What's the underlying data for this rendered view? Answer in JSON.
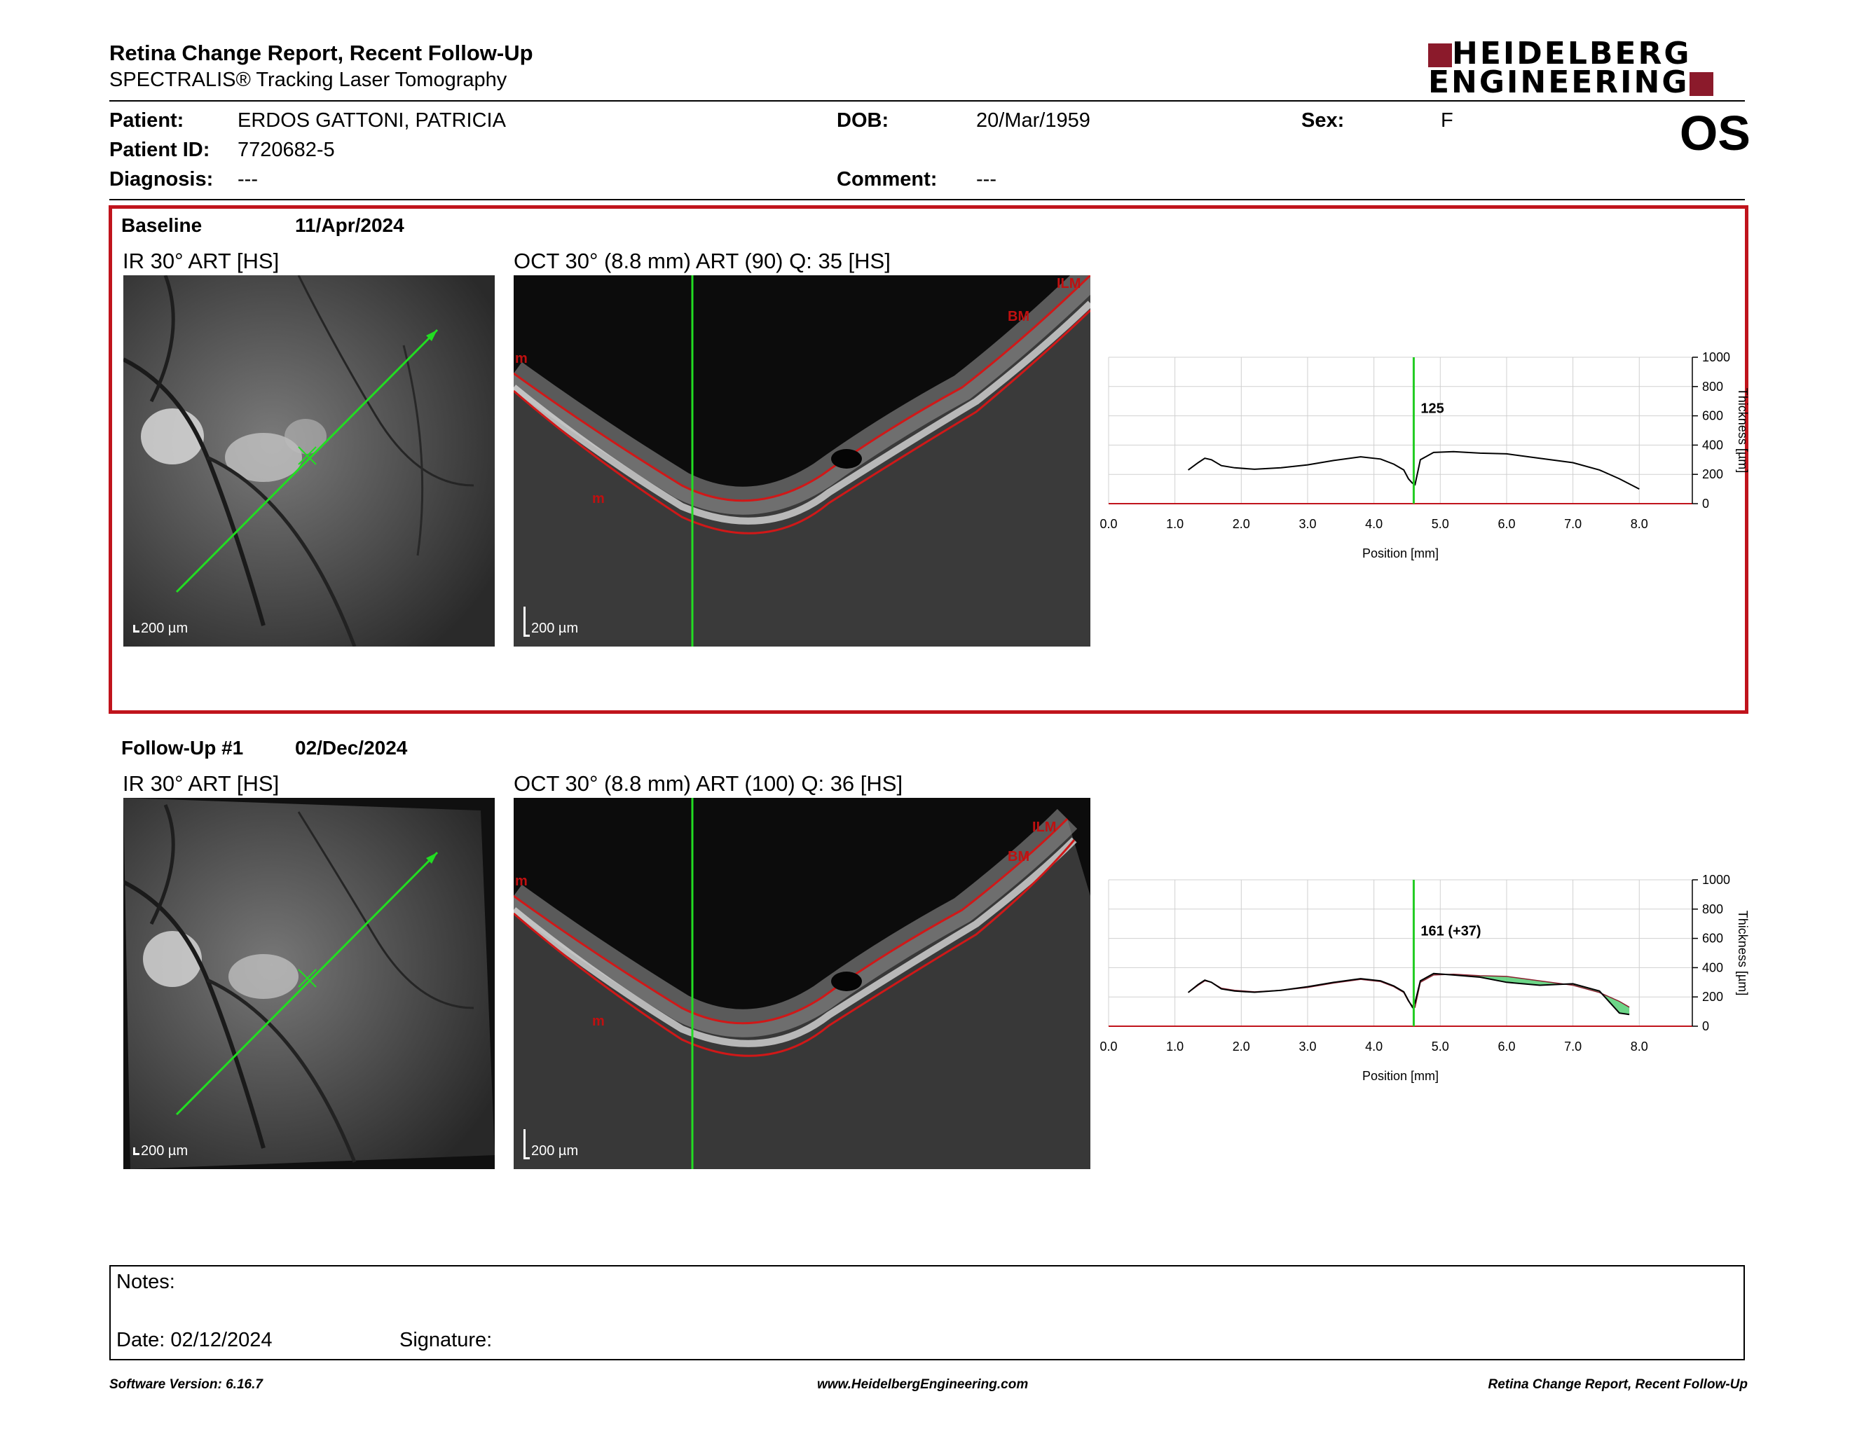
{
  "report": {
    "title": "Retina Change Report, Recent Follow-Up",
    "subtitle": "SPECTRALIS® Tracking Laser Tomography",
    "logo_line1": "HEIDELBERG",
    "logo_line2": "ENGINEERING",
    "eye": "OS"
  },
  "patient": {
    "patient_label": "Patient:",
    "patient_value": "ERDOS GATTONI, PATRICIA",
    "id_label": "Patient ID:",
    "id_value": "7720682-5",
    "diagnosis_label": "Diagnosis:",
    "diagnosis_value": "---",
    "dob_label": "DOB:",
    "dob_value": "20/Mar/1959",
    "comment_label": "Comment:",
    "comment_value": "---",
    "sex_label": "Sex:",
    "sex_value": "F"
  },
  "baseline": {
    "label": "Baseline",
    "date": "11/Apr/2024",
    "ir_caption": "IR 30° ART [HS]",
    "oct_caption": "OCT 30° (8.8 mm) ART (90) Q: 35 [HS]",
    "scale": "200 µm",
    "oct_tags": {
      "ilm": "ILM",
      "bm": "BM",
      "m1": "m",
      "m2": "m"
    }
  },
  "followup": {
    "label": "Follow-Up #1",
    "date": "02/Dec/2024",
    "ir_caption": "IR 30° ART [HS]",
    "oct_caption": "OCT 30° (8.8 mm) ART (100) Q: 36 [HS]",
    "scale": "200 µm",
    "oct_tags": {
      "ilm": "ILM",
      "bm": "BM",
      "m1": "m",
      "m2": "m"
    }
  },
  "notes": {
    "notes_label": "Notes:",
    "date_label": "Date: 02/12/2024",
    "signature_label": "Signature:"
  },
  "footer": {
    "left": "Software Version: 6.16.7",
    "center": "www.HeidelbergEngineering.com",
    "right": "Retina Change Report, Recent Follow-Up"
  },
  "colors": {
    "accent_red": "#c0141c",
    "logo_red": "#8b1a2b",
    "marker_green": "#22cc22",
    "diff_green": "#3cc860"
  },
  "chart_data": [
    {
      "type": "line",
      "xlabel": "Position [mm]",
      "ylabel": "Thickness [µm]",
      "xlim": [
        0,
        8.8
      ],
      "ylim": [
        0,
        1000
      ],
      "xticks": [
        "0.0",
        "1.0",
        "2.0",
        "3.0",
        "4.0",
        "5.0",
        "6.0",
        "7.0",
        "8.0"
      ],
      "yticks": [
        "0",
        "200",
        "400",
        "600",
        "800",
        "1000"
      ],
      "grid": true,
      "marker_x": 4.6,
      "marker_label": "125",
      "series": [
        {
          "x": [
            1.2,
            1.35,
            1.45,
            1.55,
            1.7,
            1.9,
            2.2,
            2.6,
            3.0,
            3.4,
            3.8,
            4.1,
            4.3,
            4.45,
            4.52,
            4.58,
            4.62,
            4.7,
            4.9,
            5.2,
            5.6,
            6.0,
            6.5,
            7.0,
            7.4,
            7.7,
            8.0
          ],
          "y": [
            230,
            280,
            310,
            300,
            260,
            245,
            235,
            245,
            265,
            295,
            320,
            305,
            270,
            230,
            170,
            140,
            130,
            300,
            350,
            355,
            345,
            340,
            310,
            280,
            230,
            170,
            100
          ]
        }
      ]
    },
    {
      "type": "line",
      "xlabel": "Position [mm]",
      "ylabel": "Thickness [µm]",
      "xlim": [
        0,
        8.8
      ],
      "ylim": [
        0,
        1000
      ],
      "xticks": [
        "0.0",
        "1.0",
        "2.0",
        "3.0",
        "4.0",
        "5.0",
        "6.0",
        "7.0",
        "8.0"
      ],
      "yticks": [
        "0",
        "200",
        "400",
        "600",
        "800",
        "1000"
      ],
      "grid": true,
      "marker_x": 4.6,
      "marker_label": "161 (+37)",
      "series": [
        {
          "x": [
            1.2,
            1.35,
            1.45,
            1.55,
            1.7,
            1.9,
            2.2,
            2.6,
            3.0,
            3.4,
            3.8,
            4.1,
            4.3,
            4.45,
            4.52,
            4.58,
            4.62,
            4.7,
            4.9,
            5.2,
            5.6,
            6.0,
            6.5,
            7.0,
            7.4,
            7.7,
            7.85
          ],
          "y": [
            230,
            285,
            315,
            300,
            255,
            240,
            232,
            245,
            270,
            300,
            325,
            310,
            275,
            235,
            175,
            130,
            161,
            310,
            360,
            350,
            335,
            300,
            280,
            290,
            240,
            90,
            80
          ]
        },
        {
          "x": [
            1.2,
            1.35,
            1.45,
            1.55,
            1.7,
            1.9,
            2.2,
            2.6,
            3.0,
            3.4,
            3.8,
            4.1,
            4.3,
            4.45,
            4.52,
            4.58,
            4.62,
            4.7,
            4.9,
            5.2,
            5.6,
            6.0,
            6.5,
            7.0,
            7.4,
            7.7,
            7.85
          ],
          "y": [
            230,
            280,
            310,
            300,
            260,
            245,
            235,
            245,
            265,
            295,
            320,
            305,
            270,
            230,
            170,
            140,
            130,
            300,
            350,
            355,
            345,
            340,
            310,
            280,
            230,
            170,
            130
          ]
        }
      ]
    }
  ]
}
